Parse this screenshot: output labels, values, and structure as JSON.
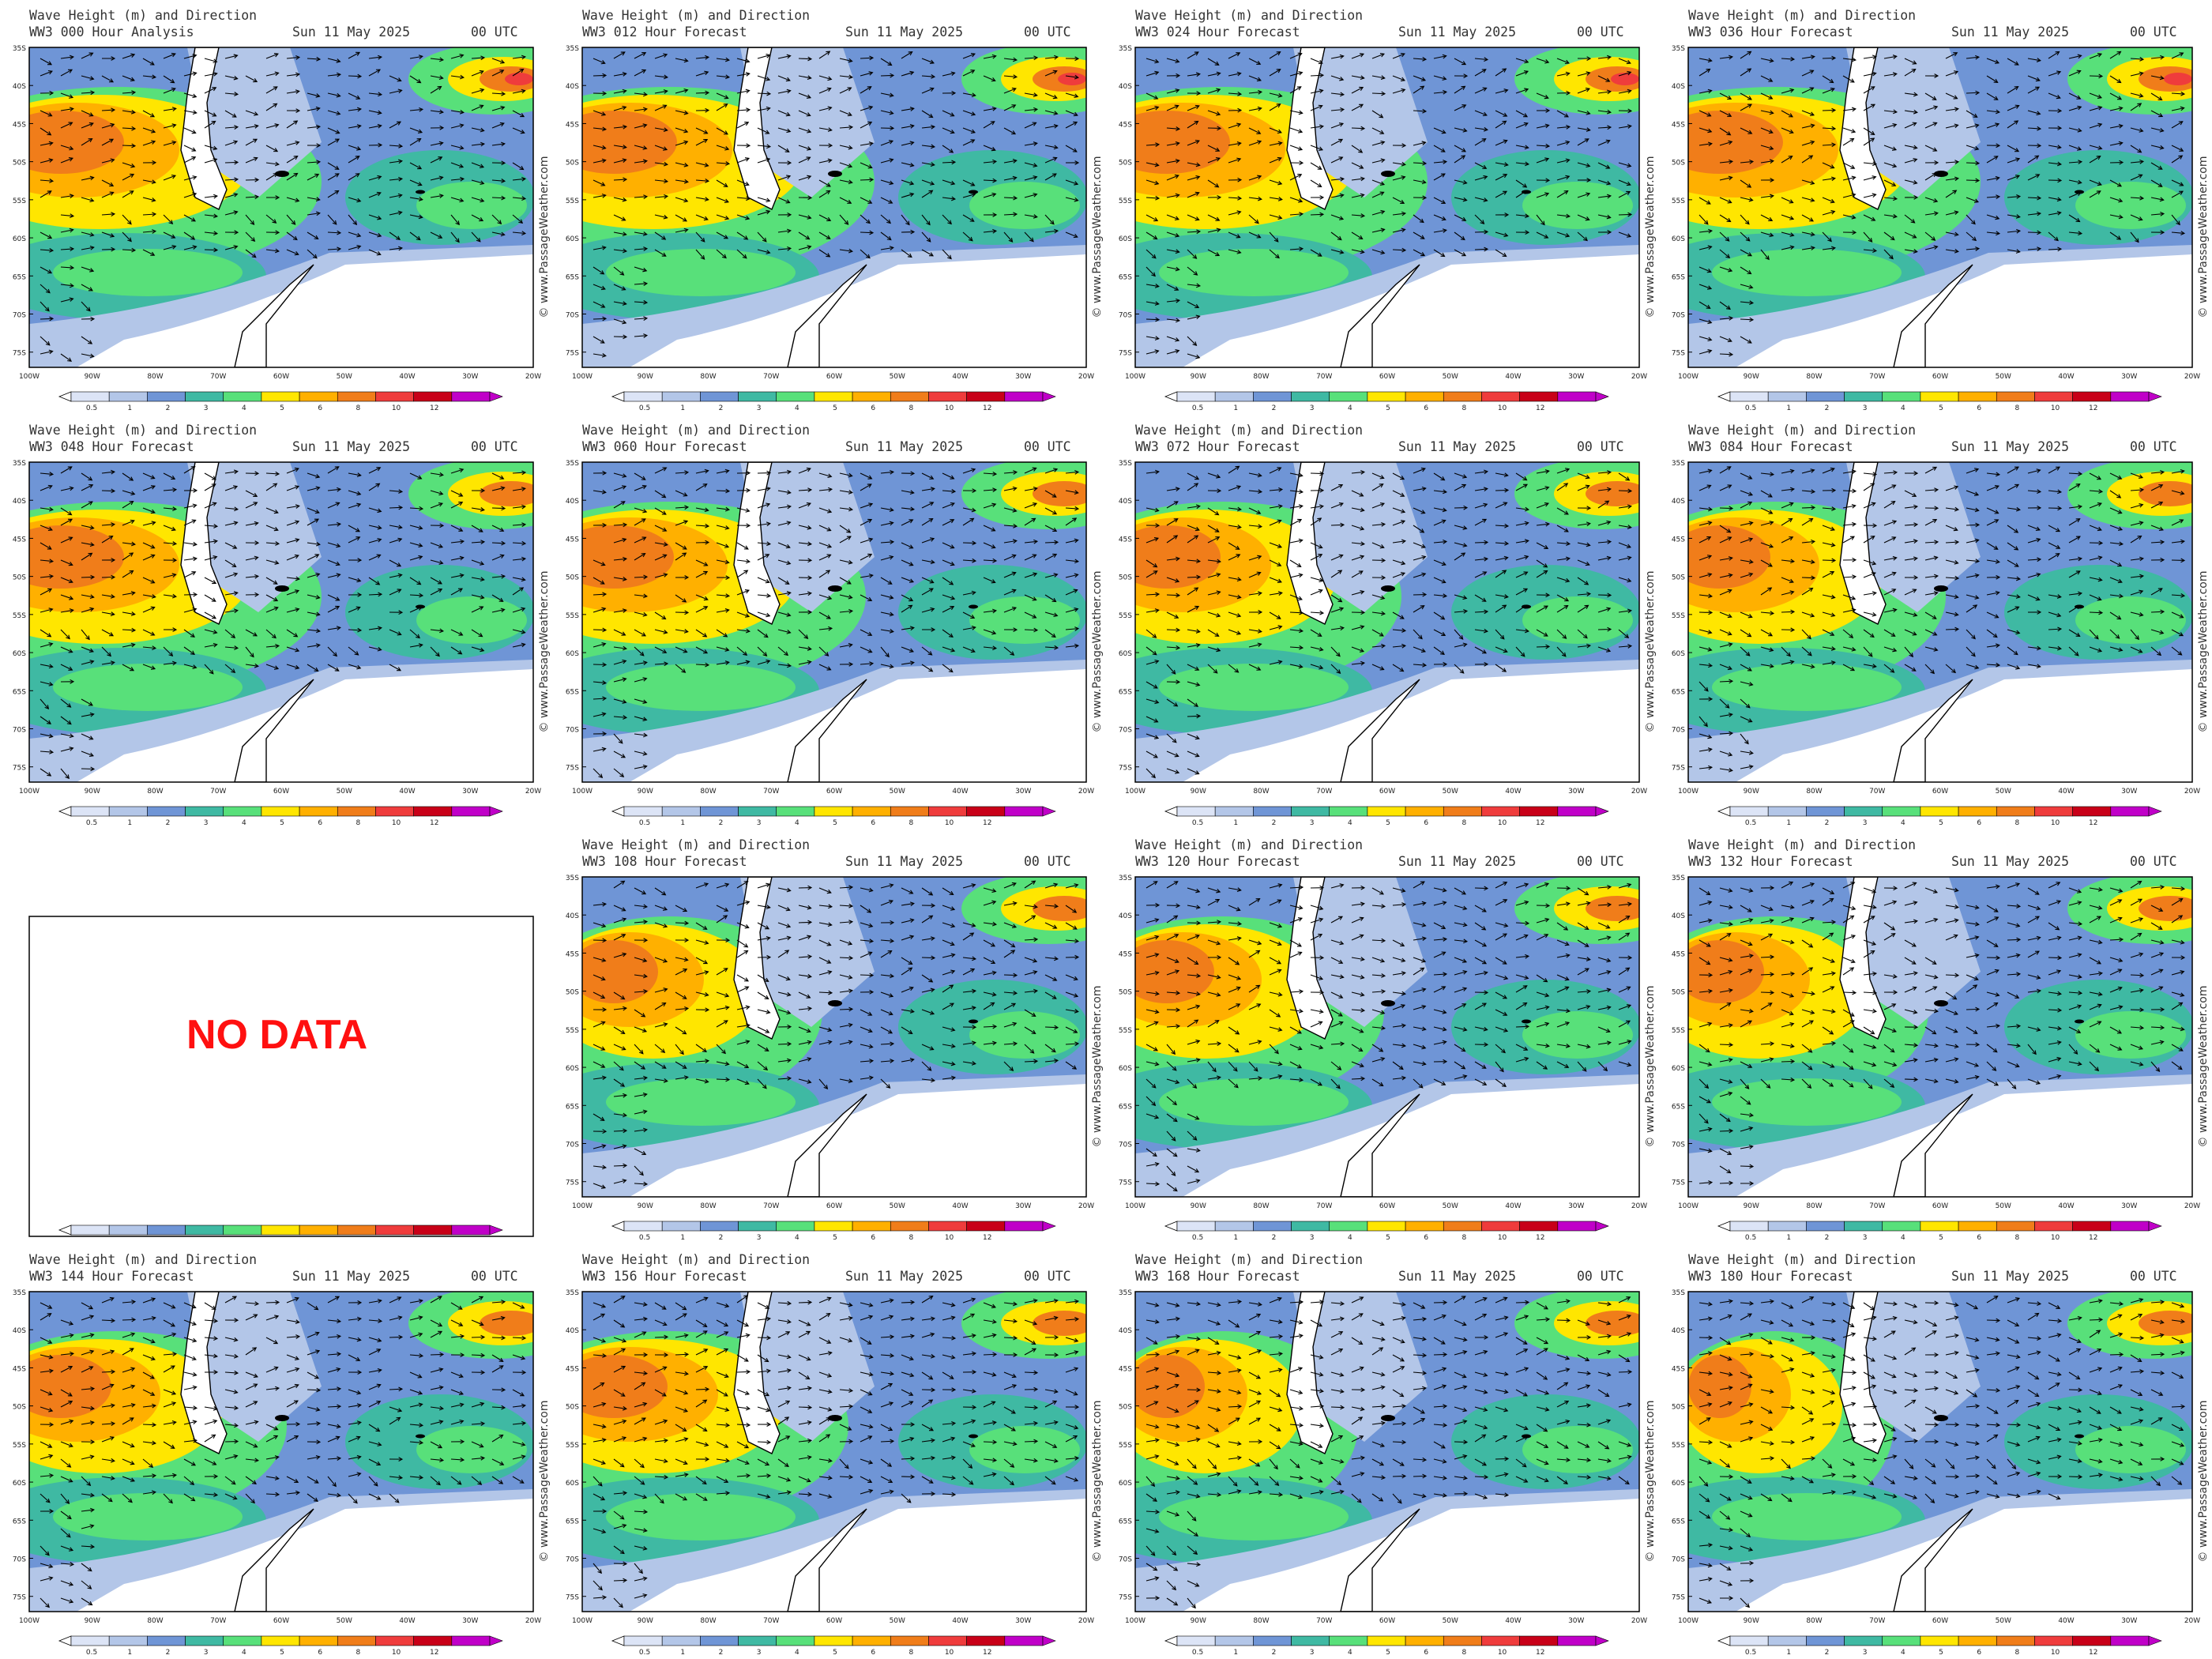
{
  "figure": {
    "title_line": "Wave Height (m) and Direction",
    "date": "Sun 11 May 2025",
    "time": "00 UTC",
    "watermark": "© www.PassageWeather.com",
    "no_data_text": "NO DATA"
  },
  "panels": [
    {
      "id": "000",
      "subtitle": "WW3 000 Hour Analysis",
      "has_data": true
    },
    {
      "id": "012",
      "subtitle": "WW3 012 Hour Forecast",
      "has_data": true
    },
    {
      "id": "024",
      "subtitle": "WW3 024 Hour Forecast",
      "has_data": true
    },
    {
      "id": "036",
      "subtitle": "WW3 036 Hour Forecast",
      "has_data": true
    },
    {
      "id": "048",
      "subtitle": "WW3 048 Hour Forecast",
      "has_data": true
    },
    {
      "id": "060",
      "subtitle": "WW3 060 Hour Forecast",
      "has_data": true
    },
    {
      "id": "072",
      "subtitle": "WW3 072 Hour Forecast",
      "has_data": true
    },
    {
      "id": "084",
      "subtitle": "WW3 084 Hour Forecast",
      "has_data": true
    },
    {
      "id": "096",
      "subtitle": "",
      "has_data": false
    },
    {
      "id": "108",
      "subtitle": "WW3 108 Hour Forecast",
      "has_data": true
    },
    {
      "id": "120",
      "subtitle": "WW3 120 Hour Forecast",
      "has_data": true
    },
    {
      "id": "132",
      "subtitle": "WW3 132 Hour Forecast",
      "has_data": true
    },
    {
      "id": "144",
      "subtitle": "WW3 144 Hour Forecast",
      "has_data": true
    },
    {
      "id": "156",
      "subtitle": "WW3 156 Hour Forecast",
      "has_data": true
    },
    {
      "id": "168",
      "subtitle": "WW3 168 Hour Forecast",
      "has_data": true
    },
    {
      "id": "180",
      "subtitle": "WW3 180 Hour Forecast",
      "has_data": true
    }
  ],
  "axes": {
    "lat_labels": [
      "35S",
      "40S",
      "45S",
      "50S",
      "55S",
      "60S",
      "65S",
      "70S",
      "75S"
    ],
    "lon_labels": [
      "100W",
      "90W",
      "80W",
      "70W",
      "60W",
      "50W",
      "40W",
      "30W",
      "20W"
    ]
  },
  "legend": {
    "labels": [
      "0.5",
      "1",
      "2",
      "3",
      "4",
      "5",
      "6",
      "8",
      "10",
      "12"
    ],
    "colors": [
      "#dce4f6",
      "#b3c6e8",
      "#6f95d6",
      "#3fb9a3",
      "#58e07a",
      "#ffe600",
      "#ffb000",
      "#f07d1a",
      "#ef3c3c",
      "#c80018",
      "#c000c8"
    ]
  }
}
